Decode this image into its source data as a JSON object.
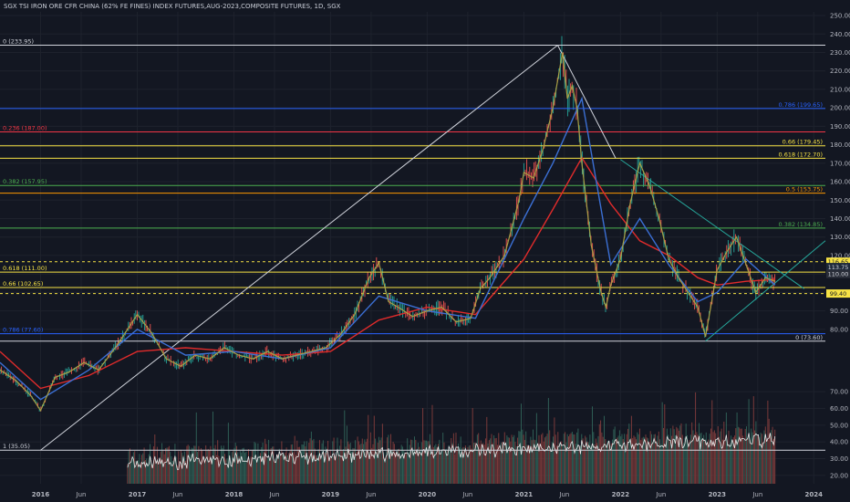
{
  "header": {
    "title": "SGX TSI IRON ORE CFR CHINA (62% FE FINES) INDEX FUTURES,AUG-2023,COMPOSITE FUTURES, 1D, SGX"
  },
  "chart_data": {
    "type": "line",
    "title": "SGX TSI IRON ORE CFR CHINA (62% FE FINES) INDEX FUTURES,AUG-2023,COMPOSITE FUTURES, 1D, SGX",
    "price_axis": {
      "ticks": [
        80,
        90,
        100,
        110,
        120,
        130,
        140,
        150,
        160,
        170,
        180,
        190,
        200,
        210,
        220,
        230,
        240,
        250
      ],
      "range": [
        72,
        252
      ]
    },
    "volume_axis": {
      "ticks": [
        20,
        30,
        40,
        50,
        60,
        70
      ],
      "range": [
        15,
        75
      ]
    },
    "time_axis": {
      "ticks": [
        "2016",
        "Jun",
        "2017",
        "Jun",
        "2018",
        "Jun",
        "2019",
        "Jun",
        "2020",
        "Jun",
        "2021",
        "Jun",
        "2022",
        "Jun",
        "2023",
        "Jun",
        "2024"
      ],
      "tick_years": [
        2016.0,
        2016.42,
        2017.0,
        2017.42,
        2018.0,
        2018.42,
        2019.0,
        2019.42,
        2020.0,
        2020.42,
        2021.0,
        2021.42,
        2022.0,
        2022.42,
        2023.0,
        2023.42,
        2024.0
      ],
      "range": [
        2015.58,
        2024.12
      ]
    },
    "price_series": {
      "name": "",
      "color": "#a7a045",
      "t": [
        2015.58,
        2015.75,
        2015.9,
        2016.0,
        2016.15,
        2016.3,
        2016.45,
        2016.6,
        2016.8,
        2017.0,
        2017.15,
        2017.3,
        2017.45,
        2017.6,
        2017.75,
        2017.9,
        2018.05,
        2018.2,
        2018.35,
        2018.5,
        2018.65,
        2018.8,
        2018.95,
        2019.1,
        2019.25,
        2019.4,
        2019.5,
        2019.6,
        2019.7,
        2019.85,
        2020.0,
        2020.15,
        2020.3,
        2020.45,
        2020.55,
        2020.65,
        2020.8,
        2020.95,
        2021.0,
        2021.1,
        2021.2,
        2021.3,
        2021.35,
        2021.4,
        2021.45,
        2021.5,
        2021.55,
        2021.6,
        2021.7,
        2021.8,
        2021.85,
        2021.9,
        2022.0,
        2022.1,
        2022.2,
        2022.3,
        2022.4,
        2022.5,
        2022.6,
        2022.7,
        2022.8,
        2022.88,
        2023.0,
        2023.1,
        2023.2,
        2023.3,
        2023.4,
        2023.5,
        2023.6
      ],
      "v": [
        58,
        52,
        44,
        36,
        54,
        57,
        62,
        58,
        72,
        88,
        78,
        64,
        60,
        66,
        64,
        70,
        66,
        64,
        68,
        64,
        66,
        68,
        70,
        77,
        88,
        108,
        116,
        95,
        92,
        87,
        90,
        92,
        84,
        86,
        102,
        108,
        120,
        150,
        165,
        162,
        178,
        200,
        215,
        230,
        205,
        212,
        200,
        170,
        125,
        100,
        92,
        104,
        118,
        148,
        170,
        158,
        140,
        118,
        108,
        100,
        92,
        76,
        112,
        122,
        130,
        115,
        100,
        108,
        106
      ]
    },
    "ma_series": [
      {
        "name": "",
        "color": "#e02b2b",
        "t": [
          2015.58,
          2016.0,
          2016.5,
          2017.0,
          2017.5,
          2018.0,
          2018.5,
          2019.0,
          2019.5,
          2020.0,
          2020.5,
          2021.0,
          2021.3,
          2021.6,
          2021.9,
          2022.2,
          2022.5,
          2022.8,
          2023.0,
          2023.3,
          2023.6
        ],
        "v": [
          68,
          48,
          55,
          68,
          70,
          68,
          66,
          68,
          85,
          92,
          88,
          118,
          145,
          173,
          148,
          128,
          120,
          108,
          104,
          106,
          107
        ]
      },
      {
        "name": "",
        "color": "#3b6fd4",
        "t": [
          2015.58,
          2016.0,
          2016.5,
          2017.0,
          2017.5,
          2018.0,
          2018.5,
          2019.0,
          2019.5,
          2020.0,
          2020.5,
          2021.0,
          2021.3,
          2021.6,
          2021.9,
          2022.2,
          2022.5,
          2022.8,
          2023.0,
          2023.3,
          2023.6
        ],
        "v": [
          62,
          42,
          58,
          80,
          66,
          68,
          64,
          70,
          98,
          90,
          86,
          140,
          170,
          205,
          115,
          140,
          115,
          95,
          100,
          118,
          104
        ]
      }
    ],
    "fib_levels": [
      {
        "label": "0 (233.95)",
        "value": 233.95,
        "color": "#d1d4dc",
        "side": "left"
      },
      {
        "label": "0.236 (187.00)",
        "value": 187.0,
        "color": "#f23645",
        "side": "left"
      },
      {
        "label": "0.382 (157.95)",
        "value": 157.95,
        "color": "#4caf50",
        "side": "left"
      },
      {
        "label": "0.618 (111.00)",
        "value": 111.0,
        "color": "#f7e345",
        "side": "left"
      },
      {
        "label": "0.66 (102.65)",
        "value": 102.65,
        "color": "#f7e345",
        "side": "left"
      },
      {
        "label": "0.786 (77.60)",
        "value": 77.6,
        "color": "#2962ff",
        "side": "left"
      },
      {
        "label": "0.786 (199.65)",
        "value": 199.65,
        "color": "#2962ff",
        "side": "right"
      },
      {
        "label": "0.66 (179.45)",
        "value": 179.45,
        "color": "#f7e345",
        "side": "right"
      },
      {
        "label": "0.618 (172.70)",
        "value": 172.7,
        "color": "#f7e345",
        "side": "right"
      },
      {
        "label": "0.5 (153.75)",
        "value": 153.75,
        "color": "#ff9800",
        "side": "right"
      },
      {
        "label": "0.382 (134.85)",
        "value": 134.85,
        "color": "#4caf50",
        "side": "right"
      },
      {
        "label": "0 (73.60)",
        "value": 73.6,
        "color": "#d1d4dc",
        "side": "right"
      }
    ],
    "volume_levels": [
      {
        "label": "1 (35.05)",
        "value": 35.05,
        "color": "#d1d4dc"
      }
    ],
    "price_tags": [
      {
        "label": "116.65",
        "value": 116.65,
        "bg": "#f7e345",
        "fg": "#131722"
      },
      {
        "label": "113.75",
        "value": 113.75,
        "bg": "#1e2a3a",
        "fg": "#d1d4dc"
      },
      {
        "label": "110.00",
        "value": 110.0,
        "bg": "#2a2e39",
        "fg": "#d1d4dc"
      },
      {
        "label": "99.40",
        "value": 99.4,
        "bg": "#f7e345",
        "fg": "#131722"
      }
    ],
    "dashed_levels": [
      116.65,
      99.4
    ],
    "trendlines": [
      {
        "color": "#d1d4dc",
        "points": [
          [
            2016.0,
            35.05
          ],
          [
            2021.35,
            233.95
          ]
        ]
      },
      {
        "color": "#d1d4dc",
        "points": [
          [
            2021.35,
            233.95
          ],
          [
            2021.95,
            172.7
          ]
        ]
      },
      {
        "color": "#26a69a",
        "points": [
          [
            2022.0,
            172.0
          ],
          [
            2023.9,
            102.0
          ]
        ]
      },
      {
        "color": "#26a69a",
        "points": [
          [
            2022.88,
            73.6
          ],
          [
            2024.12,
            128.0
          ]
        ]
      }
    ],
    "grid": true
  }
}
